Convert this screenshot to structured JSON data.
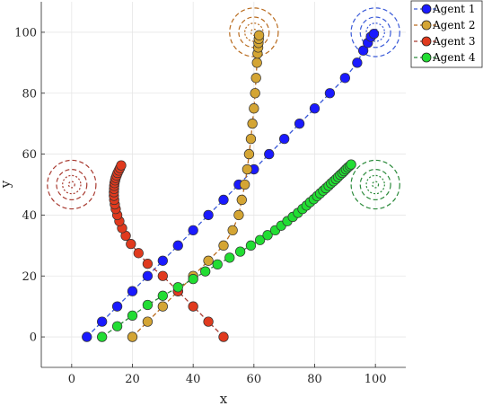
{
  "chart_data": {
    "type": "scatter",
    "title": "",
    "xlabel": "x",
    "ylabel": "y",
    "xlim": [
      -10,
      110
    ],
    "ylim": [
      -10,
      110
    ],
    "xticks": [
      0,
      20,
      40,
      60,
      80,
      100
    ],
    "yticks": [
      0,
      20,
      40,
      60,
      80,
      100
    ],
    "grid": true,
    "legend_position": "top-right",
    "series": [
      {
        "name": "Agent 1",
        "color": "#1a1aff",
        "line_color": "#3a5ad8",
        "goal": [
          100,
          100
        ],
        "x": [
          5,
          10,
          15,
          20,
          25,
          30,
          35,
          40,
          45,
          50,
          55,
          60,
          65,
          70,
          75,
          80,
          85,
          90,
          94,
          96,
          97.5,
          98.5,
          99.5
        ],
        "y": [
          0,
          5,
          10,
          15,
          20,
          25,
          30,
          35,
          40,
          45,
          50,
          55,
          60,
          65,
          70,
          75,
          80,
          85,
          90,
          94,
          96.5,
          98.5,
          99.5
        ]
      },
      {
        "name": "Agent 2",
        "color": "#d4a534",
        "line_color": "#b96b1e",
        "goal": [
          60,
          100
        ],
        "x": [
          20,
          25,
          30,
          35,
          40,
          45,
          50,
          53,
          55,
          56,
          57,
          57.8,
          58.4,
          59,
          59.5,
          60,
          60.4,
          60.7,
          61,
          61.2,
          61.4,
          61.5,
          61.6,
          61.7
        ],
        "y": [
          0,
          5,
          10,
          15,
          20,
          25,
          30,
          35,
          40,
          45,
          50,
          55,
          60,
          65,
          70,
          75,
          80,
          85,
          90,
          93,
          95,
          96.5,
          97.8,
          99
        ]
      },
      {
        "name": "Agent 3",
        "color": "#e03a1e",
        "line_color": "#a83a30",
        "goal": [
          0,
          50
        ],
        "x": [
          50,
          45,
          40,
          35,
          30,
          25,
          22,
          19.5,
          17.8,
          16.6,
          15.7,
          15,
          14.5,
          14.2,
          14,
          13.9,
          13.9,
          13.95,
          14,
          14.1,
          14.3,
          14.5,
          14.8,
          15.1,
          15.5,
          15.9,
          16.3
        ],
        "y": [
          0,
          5,
          10,
          15,
          20,
          24,
          27.5,
          30.5,
          33.2,
          35.7,
          38,
          40,
          42,
          43.5,
          45,
          46.3,
          47.5,
          48.6,
          49.6,
          50.5,
          51.4,
          52.2,
          53,
          53.8,
          54.6,
          55.4,
          56.3
        ]
      },
      {
        "name": "Agent 4",
        "color": "#22dd33",
        "line_color": "#2a8a3a",
        "goal": [
          100,
          50
        ],
        "x": [
          10,
          15,
          20,
          25,
          30,
          35,
          40,
          44,
          48,
          52,
          55.5,
          59,
          62,
          64.5,
          67,
          69,
          71,
          72.8,
          74.5,
          76,
          77.3,
          78.5,
          79.7,
          80.8,
          81.8,
          82.8,
          83.7,
          84.6,
          85.4,
          86.2,
          87,
          87.7,
          88.4,
          89.1,
          89.7,
          90.3,
          90.9,
          91.5,
          92
        ],
        "y": [
          0,
          3.5,
          7,
          10.5,
          13.5,
          16.3,
          19,
          21.5,
          23.8,
          26,
          28,
          30,
          31.8,
          33.4,
          35,
          36.5,
          38,
          39.4,
          40.7,
          42,
          43.1,
          44.2,
          45.2,
          46.2,
          47.1,
          48,
          48.8,
          49.6,
          50.4,
          51.1,
          51.8,
          52.5,
          53.2,
          53.8,
          54.4,
          55,
          55.6,
          56.1,
          56.6
        ]
      }
    ]
  }
}
